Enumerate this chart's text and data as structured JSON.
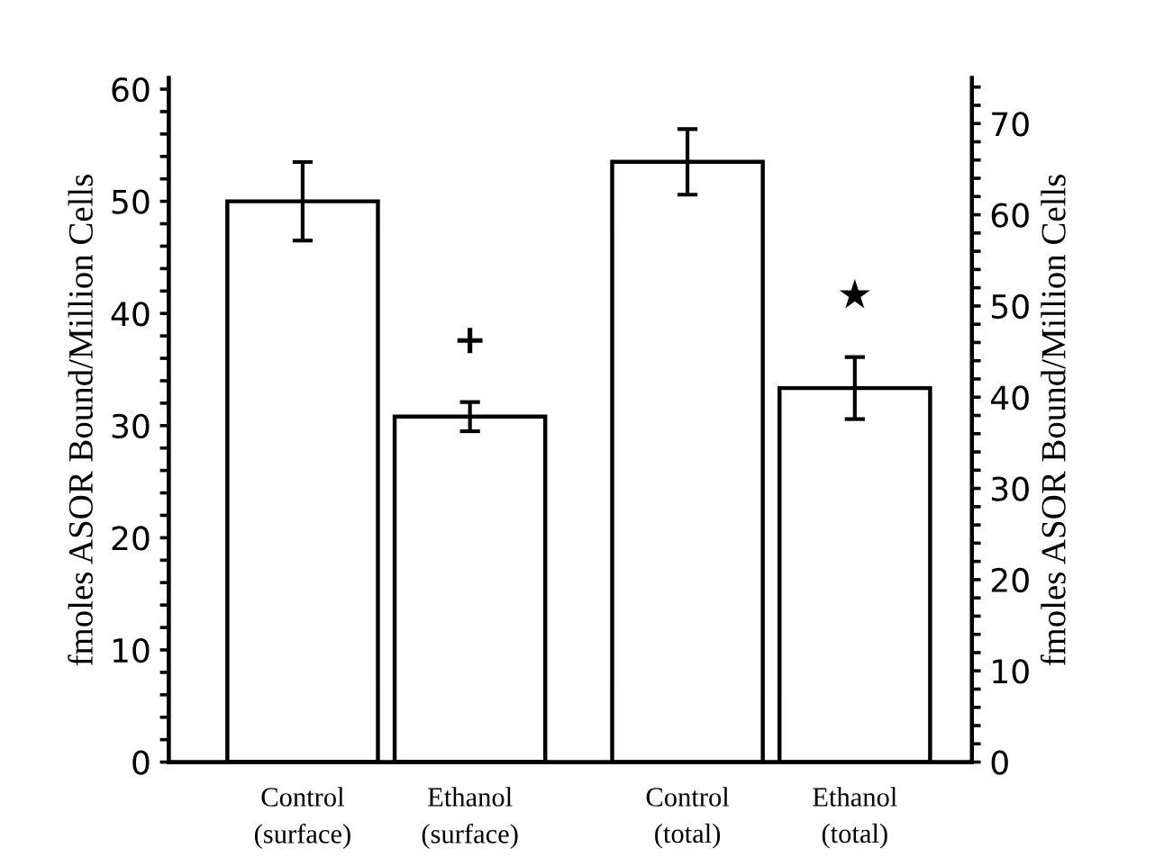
{
  "chart_data": {
    "type": "bar",
    "ylabel": "fmoles ASOR Bound/Million Cells",
    "y2label": "fmoles ASOR Bound/Million Cells",
    "categories": [
      "Control\n(surface)",
      "Ethanol\n(surface)",
      "Control\n(total)",
      "Ethanol\n(total)"
    ],
    "series": [
      {
        "color": "#ffffff",
        "values": [
          50,
          30.8,
          null,
          null
        ],
        "errors": [
          3.5,
          1.3,
          null,
          null
        ],
        "axis": "y"
      },
      {
        "color": "#ffffff",
        "values": [
          null,
          null,
          65.8,
          41
        ],
        "errors": [
          null,
          null,
          3.6,
          3.4
        ],
        "axis": "y2"
      }
    ],
    "ylim": [
      0,
      61
    ],
    "yticks": [
      0,
      {
        "value": 2,
        "label": null
      },
      {
        "value": 4,
        "label": null
      },
      {
        "value": 6,
        "label": null
      },
      {
        "value": 8,
        "label": null
      },
      10,
      {
        "value": 12,
        "label": null
      },
      {
        "value": 14,
        "label": null
      },
      {
        "value": 16,
        "label": null
      },
      {
        "value": 18,
        "label": null
      },
      20,
      {
        "value": 22,
        "label": null
      },
      {
        "value": 24,
        "label": null
      },
      {
        "value": 26,
        "label": null
      },
      {
        "value": 28,
        "label": null
      },
      30,
      {
        "value": 32,
        "label": null
      },
      {
        "value": 34,
        "label": null
      },
      {
        "value": 36,
        "label": null
      },
      {
        "value": 38,
        "label": null
      },
      40,
      {
        "value": 42,
        "label": null
      },
      {
        "value": 44,
        "label": null
      },
      {
        "value": 46,
        "label": null
      },
      {
        "value": 48,
        "label": null
      },
      50,
      {
        "value": 52,
        "label": null
      },
      {
        "value": 54,
        "label": null
      },
      {
        "value": 56,
        "label": null
      },
      {
        "value": 58,
        "label": null
      },
      60
    ],
    "y2lim": [
      0,
      75
    ],
    "y2ticks": [
      0,
      {
        "value": 2,
        "label": null
      },
      {
        "value": 4,
        "label": null
      },
      {
        "value": 6,
        "label": null
      },
      {
        "value": 8,
        "label": null
      },
      10,
      {
        "value": 12,
        "label": null
      },
      {
        "value": 14,
        "label": null
      },
      {
        "value": 16,
        "label": null
      },
      {
        "value": 18,
        "label": null
      },
      20,
      {
        "value": 22,
        "label": null
      },
      {
        "value": 24,
        "label": null
      },
      {
        "value": 26,
        "label": null
      },
      {
        "value": 28,
        "label": null
      },
      30,
      {
        "value": 32,
        "label": null
      },
      {
        "value": 34,
        "label": null
      },
      {
        "value": 36,
        "label": null
      },
      {
        "value": 38,
        "label": null
      },
      40,
      {
        "value": 42,
        "label": null
      },
      {
        "value": 44,
        "label": null
      },
      {
        "value": 46,
        "label": null
      },
      {
        "value": 48,
        "label": null
      },
      50,
      {
        "value": 52,
        "label": null
      },
      {
        "value": 54,
        "label": null
      },
      {
        "value": 56,
        "label": null
      },
      {
        "value": 58,
        "label": null
      },
      60,
      {
        "value": 62,
        "label": null
      },
      {
        "value": 64,
        "label": null
      },
      {
        "value": 66,
        "label": null
      },
      {
        "value": 68,
        "label": null
      },
      70,
      {
        "value": 72,
        "label": null
      },
      {
        "value": 74,
        "label": null
      }
    ],
    "annotations": [
      "+",
      "★"
    ]
  }
}
